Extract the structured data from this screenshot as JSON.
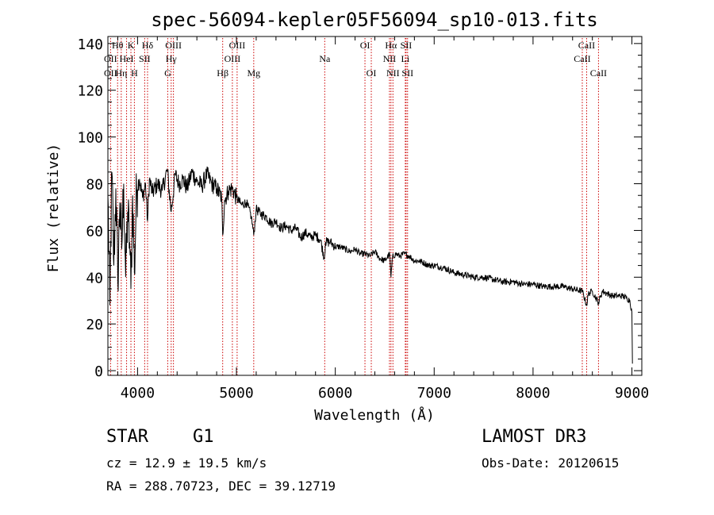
{
  "chart_data": {
    "type": "line",
    "title": "spec-56094-kepler05F56094_sp10-013.fits",
    "xlabel": "Wavelength (Å)",
    "ylabel": "Flux (relative)",
    "xlim": [
      3700,
      9100
    ],
    "ylim": [
      -2,
      143
    ],
    "xticks": [
      4000,
      5000,
      6000,
      7000,
      8000,
      9000
    ],
    "yticks": [
      0,
      20,
      40,
      60,
      80,
      100,
      120,
      140
    ],
    "x_minor_step": 200,
    "y_minor_step": 5,
    "line_color": "#000000",
    "marker_color": "#cc0000",
    "series": [
      {
        "name": "flux",
        "x": [
          3700,
          3720,
          3740,
          3760,
          3780,
          3800,
          3820,
          3840,
          3860,
          3880,
          3900,
          3920,
          3933,
          3950,
          3968,
          3990,
          4020,
          4050,
          4080,
          4101,
          4120,
          4150,
          4200,
          4250,
          4300,
          4340,
          4380,
          4420,
          4460,
          4500,
          4550,
          4600,
          4650,
          4700,
          4750,
          4800,
          4850,
          4861,
          4880,
          4920,
          4960,
          5000,
          5050,
          5100,
          5150,
          5175,
          5200,
          5250,
          5300,
          5350,
          5400,
          5450,
          5500,
          5550,
          5600,
          5650,
          5700,
          5750,
          5800,
          5850,
          5890,
          5900,
          5950,
          6000,
          6050,
          6100,
          6150,
          6200,
          6250,
          6300,
          6350,
          6400,
          6450,
          6500,
          6550,
          6563,
          6580,
          6620,
          6650,
          6700,
          6750,
          6800,
          6850,
          6900,
          6950,
          7000,
          7100,
          7200,
          7300,
          7400,
          7500,
          7600,
          7700,
          7800,
          7900,
          8000,
          8100,
          8200,
          8300,
          8400,
          8498,
          8542,
          8560,
          8600,
          8662,
          8700,
          8750,
          8800,
          8850,
          8900,
          8950,
          8980,
          9000,
          9005
        ],
        "y": [
          75,
          28,
          85,
          45,
          78,
          38,
          72,
          52,
          80,
          40,
          68,
          55,
          35,
          75,
          42,
          78,
          82,
          74,
          80,
          64,
          82,
          76,
          80,
          77,
          86,
          68,
          84,
          80,
          82,
          78,
          85,
          81,
          79,
          84,
          80,
          78,
          74,
          58,
          73,
          77,
          78,
          74,
          71,
          72,
          66,
          58,
          69,
          67,
          66,
          63,
          64,
          61,
          62,
          60,
          61,
          57,
          59,
          57,
          58,
          56,
          48,
          55,
          55,
          53,
          53,
          52,
          51,
          52,
          50,
          50,
          49,
          51,
          48,
          47,
          50,
          40,
          49,
          50,
          49,
          50,
          49,
          47,
          47,
          46,
          45,
          45,
          44,
          42,
          41,
          40,
          40,
          39,
          38,
          38,
          37,
          37,
          36,
          36,
          36,
          35,
          34,
          28,
          33,
          34,
          29,
          34,
          33,
          32,
          32,
          32,
          31,
          30,
          25,
          3
        ]
      }
    ],
    "lines": [
      {
        "name": "Hθ",
        "x": 3798,
        "row": 1
      },
      {
        "name": "OII",
        "x": 3727,
        "row": 2
      },
      {
        "name": "OII",
        "x": 3727,
        "row": 3
      },
      {
        "name": "Hη",
        "x": 3835,
        "row": 3
      },
      {
        "name": "HeI",
        "x": 3889,
        "row": 2
      },
      {
        "name": "K",
        "x": 3933,
        "row": 1
      },
      {
        "name": "H",
        "x": 3968,
        "row": 3
      },
      {
        "name": "SII",
        "x": 4072,
        "row": 2
      },
      {
        "name": "Hδ",
        "x": 4101,
        "row": 1
      },
      {
        "name": "Hγ",
        "x": 4340,
        "row": 2
      },
      {
        "name": "G",
        "x": 4305,
        "row": 3
      },
      {
        "name": "OIII",
        "x": 4363,
        "row": 1
      },
      {
        "name": "Hβ",
        "x": 4861,
        "row": 3
      },
      {
        "name": "OIII",
        "x": 4959,
        "row": 2
      },
      {
        "name": "OIII",
        "x": 5007,
        "row": 1
      },
      {
        "name": "Mg",
        "x": 5175,
        "row": 3
      },
      {
        "name": "Na",
        "x": 5893,
        "row": 2
      },
      {
        "name": "OI",
        "x": 6300,
        "row": 1
      },
      {
        "name": "OI",
        "x": 6364,
        "row": 3
      },
      {
        "name": "Hα",
        "x": 6563,
        "row": 1
      },
      {
        "name": "NII",
        "x": 6548,
        "row": 2
      },
      {
        "name": "NII",
        "x": 6583,
        "row": 3
      },
      {
        "name": "SII",
        "x": 6716,
        "row": 1
      },
      {
        "name": "Li",
        "x": 6708,
        "row": 2
      },
      {
        "name": "SII",
        "x": 6731,
        "row": 3
      },
      {
        "name": "CaII",
        "x": 8542,
        "row": 1
      },
      {
        "name": "CaII",
        "x": 8498,
        "row": 2
      },
      {
        "name": "CaII",
        "x": 8662,
        "row": 3
      }
    ]
  },
  "info": {
    "object_class": "STAR",
    "subclass": "G1",
    "survey": "LAMOST DR3",
    "cz_line": "cz = 12.9 ± 19.5 km/s",
    "obs_date_line": "Obs-Date: 20120615",
    "radec_line": "RA = 288.70723, DEC =  39.12719"
  }
}
